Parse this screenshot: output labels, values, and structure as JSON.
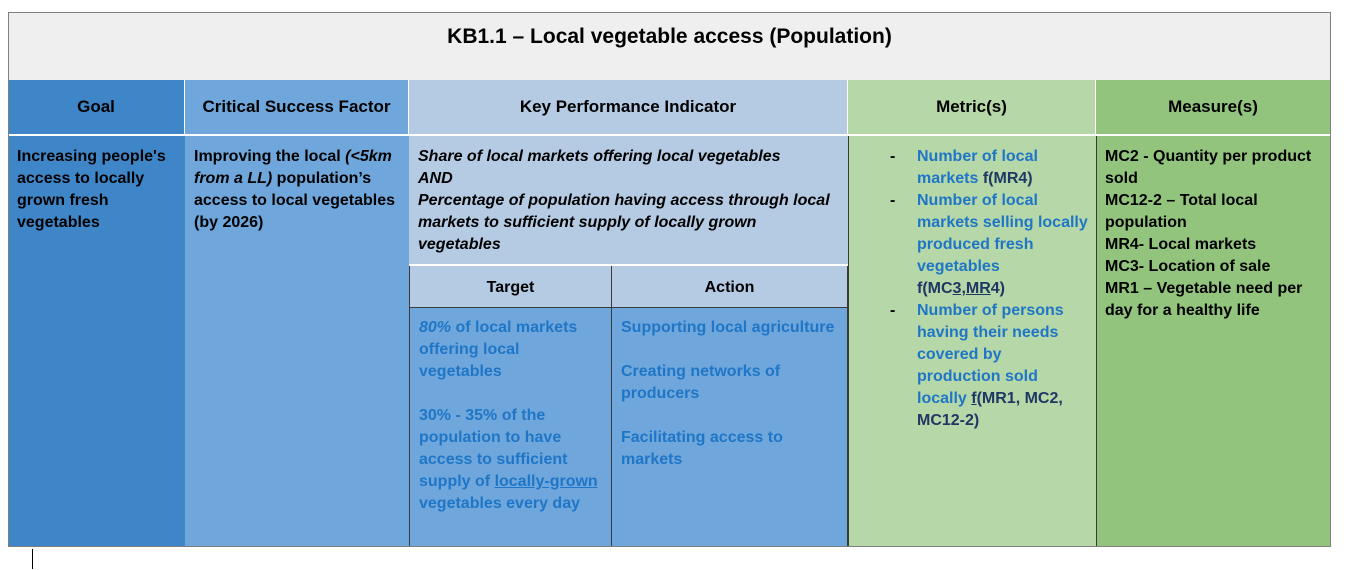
{
  "title": "KB1.1 – Local vegetable access (Population)",
  "headers": {
    "goal": "Goal",
    "csf": "Critical Success Factor",
    "kpi": "Key Performance Indicator",
    "metric": "Metric(s)",
    "measure": "Measure(s)"
  },
  "goal": {
    "text": "Increasing people's access to locally grown fresh vegetables"
  },
  "csf": {
    "part1": "Improving the local ",
    "part2_italic": "(<5km from a LL)",
    "part3": " population’s access to local vegetables (by 2026)"
  },
  "kpi": {
    "line1": "Share of local markets offering local vegetables",
    "line2": "AND",
    "line3": "Percentage of population having access through local markets to sufficient supply of locally grown vegetables"
  },
  "target": {
    "header": "Target",
    "t1_italic": "80%",
    "t1_rest": " of local markets offering local vegetables",
    "t2_a": "30% - 35% of the population to have access to sufficient supply of ",
    "t2_underlined": "locally-grown",
    "t2_b": " vegetables every day"
  },
  "action": {
    "header": "Action",
    "items": [
      "Supporting local agriculture",
      "Creating networks of producers",
      "Facilitating access to markets"
    ]
  },
  "metrics": {
    "bullet": "-",
    "m1_text": "Number of local markets ",
    "m1_f": "f(MR4)",
    "m2_text": "Number of local markets selling locally produced fresh vegetables",
    "m2_f_a": "f(MC",
    "m2_f_b": "3,MR",
    "m2_f_c": "4)",
    "m3_text": "Number of persons having their needs covered by production sold locally ",
    "m3_f_u": "f",
    "m3_f_rest": "(MR1, MC2, MC12-2)"
  },
  "measures": {
    "items": [
      "MC2 - Quantity per product sold",
      "MC12-2 – Total local population",
      "MR4- Local markets",
      "MC3- Location of sale",
      "MR1 – Vegetable need per day for a healthy life"
    ]
  }
}
